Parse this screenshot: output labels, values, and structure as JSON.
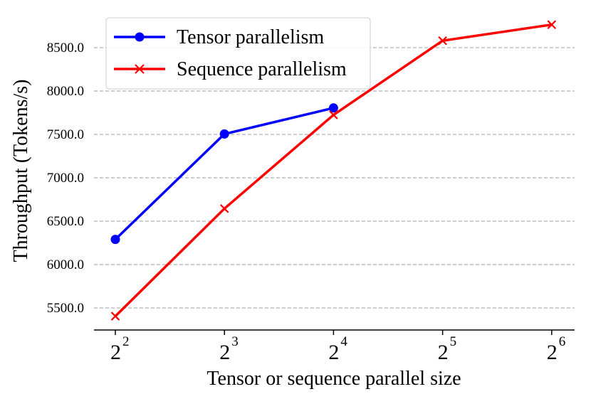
{
  "chart_data": {
    "type": "line",
    "title": "",
    "xlabel": "Tensor or sequence parallel size",
    "ylabel": "Throughput (Tokens/s)",
    "x_scale": "log2",
    "x_ticks": [
      {
        "value": 4,
        "base": "2",
        "exp": "2"
      },
      {
        "value": 8,
        "base": "2",
        "exp": "3"
      },
      {
        "value": 16,
        "base": "2",
        "exp": "4"
      },
      {
        "value": 32,
        "base": "2",
        "exp": "5"
      },
      {
        "value": 64,
        "base": "2",
        "exp": "6"
      }
    ],
    "y_ticks": [
      "5500.0",
      "6000.0",
      "6500.0",
      "7000.0",
      "7500.0",
      "8000.0",
      "8500.0"
    ],
    "ylim": [
      5240,
      8800
    ],
    "grid": "horizontal dashed",
    "legend_position": "top-left",
    "series": [
      {
        "name": "Tensor parallelism",
        "color": "#0000ff",
        "marker": "circle",
        "x": [
          4,
          8,
          16
        ],
        "y": [
          6290,
          7505,
          7805
        ]
      },
      {
        "name": "Sequence parallelism",
        "color": "#ff0000",
        "marker": "x",
        "x": [
          4,
          8,
          16,
          32,
          64
        ],
        "y": [
          5405,
          6645,
          7725,
          8580,
          8765
        ]
      }
    ]
  }
}
